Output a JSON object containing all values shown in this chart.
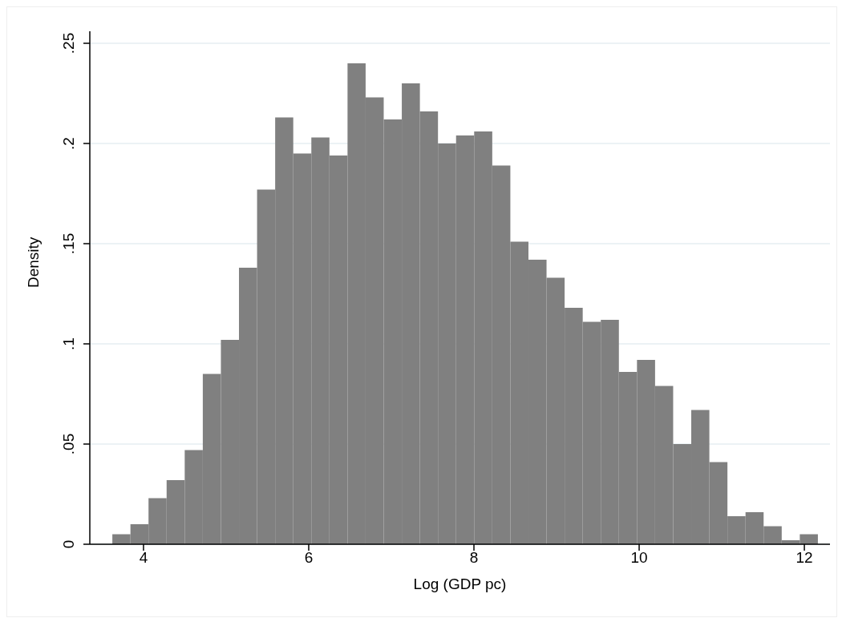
{
  "chart_data": {
    "type": "histogram",
    "xlabel": "Log (GDP pc)",
    "ylabel": "Density",
    "color": "#808080",
    "bins": [
      3.623,
      3.842,
      4.061,
      4.28,
      4.499,
      4.718,
      4.937,
      5.156,
      5.375,
      5.594,
      5.813,
      6.032,
      6.251,
      6.47,
      6.689,
      6.908,
      7.127,
      7.346,
      7.565,
      7.784,
      8.003,
      8.222,
      8.441,
      8.66,
      8.879,
      9.098,
      9.317,
      9.536,
      9.755,
      9.974,
      10.193,
      10.412,
      10.631,
      10.85,
      11.069,
      11.288,
      11.507,
      11.726,
      11.945,
      12.164
    ],
    "values": [
      0.005,
      0.01,
      0.023,
      0.032,
      0.047,
      0.085,
      0.102,
      0.138,
      0.177,
      0.213,
      0.195,
      0.203,
      0.194,
      0.24,
      0.223,
      0.212,
      0.23,
      0.216,
      0.2,
      0.204,
      0.206,
      0.189,
      0.151,
      0.142,
      0.133,
      0.118,
      0.111,
      0.112,
      0.086,
      0.092,
      0.079,
      0.05,
      0.067,
      0.041,
      0.014,
      0.016,
      0.009,
      0.002,
      0.005
    ],
    "xlim": [
      3.35,
      12.31
    ],
    "xticks": [
      4,
      6,
      8,
      10,
      12
    ],
    "ylim": [
      0,
      0.256
    ],
    "yticks": [
      0,
      {
        "value": 0.05,
        "label": ".05"
      },
      {
        "value": 0.1,
        "label": ".1"
      },
      {
        "value": 0.15,
        "label": ".15"
      },
      {
        "value": 0.2,
        "label": ".2"
      },
      {
        "value": 0.25,
        "label": ".25"
      }
    ],
    "grid": "y"
  }
}
